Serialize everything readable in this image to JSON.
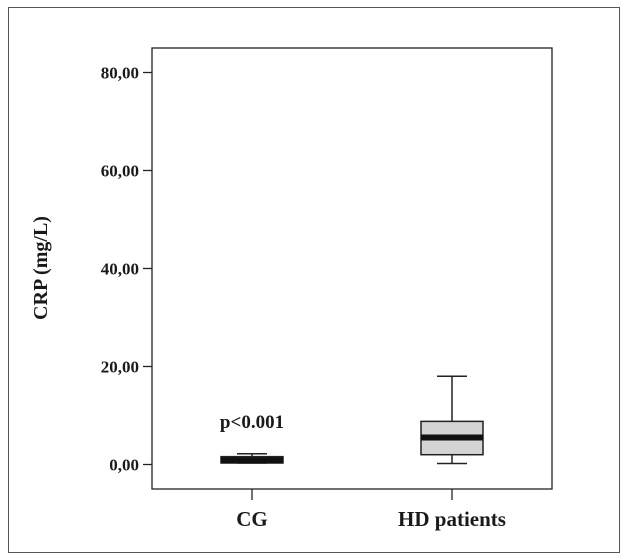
{
  "chart_data": {
    "type": "boxplot",
    "title": "",
    "xlabel": "",
    "ylabel": "CRP (mg/L)",
    "ylim": [
      -5,
      85
    ],
    "y_ticks": [
      0,
      20,
      40,
      60,
      80
    ],
    "y_tick_labels": [
      "0,00",
      "20,00",
      "40,00",
      "60,00",
      "80,00"
    ],
    "categories": [
      "CG",
      "HD patients"
    ],
    "boxes": [
      {
        "category": "CG",
        "whisker_low": 0.3,
        "q1": 0.3,
        "median": 0.9,
        "q3": 1.6,
        "whisker_high": 2.2,
        "fill": "#e0e0e0"
      },
      {
        "category": "HD patients",
        "whisker_low": 0.2,
        "q1": 2.0,
        "median": 5.5,
        "q3": 8.8,
        "whisker_high": 18.0,
        "fill": "#d4d4d4"
      }
    ],
    "annotations": [
      {
        "text": "p<0.001",
        "category": "CG",
        "y": 7.5
      }
    ],
    "grid": false,
    "legend": "none"
  }
}
